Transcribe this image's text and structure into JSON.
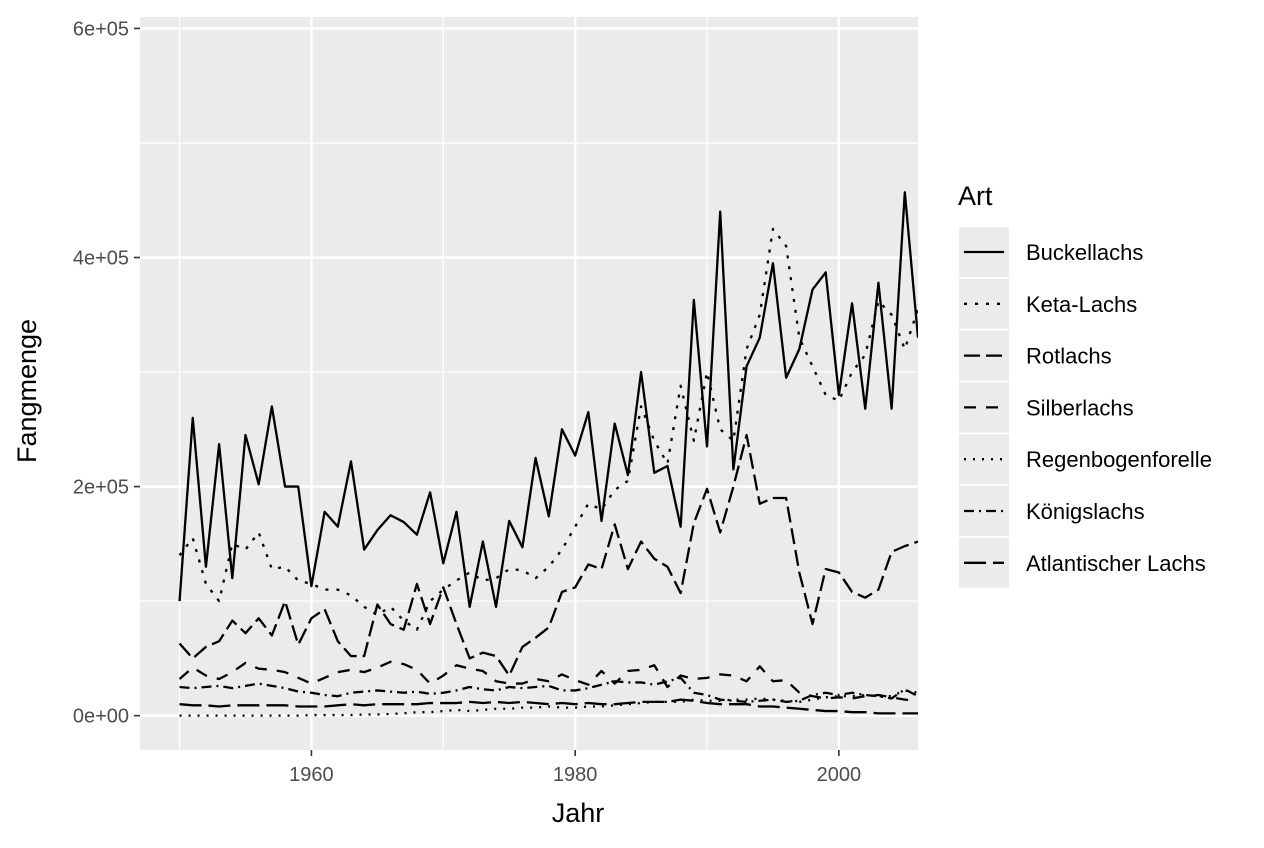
{
  "chart_data": {
    "type": "line",
    "xlabel": "Jahr",
    "ylabel": "Fangmenge",
    "xlim": [
      1947,
      2006
    ],
    "ylim": [
      -30000,
      610000
    ],
    "x_ticks": [
      1960,
      1980,
      2000
    ],
    "x_tick_labels": [
      "1960",
      "1980",
      "2000"
    ],
    "y_ticks": [
      0,
      200000,
      400000,
      600000
    ],
    "y_tick_labels": [
      "0e+00",
      "2e+05",
      "4e+05",
      "6e+05"
    ],
    "grid": true,
    "legend": {
      "title": "Art",
      "position": "right"
    },
    "x": [
      1950,
      1951,
      1952,
      1953,
      1954,
      1955,
      1956,
      1957,
      1958,
      1959,
      1960,
      1961,
      1962,
      1963,
      1964,
      1965,
      1966,
      1967,
      1968,
      1969,
      1970,
      1971,
      1972,
      1973,
      1974,
      1975,
      1976,
      1977,
      1978,
      1979,
      1980,
      1981,
      1982,
      1983,
      1984,
      1985,
      1986,
      1987,
      1988,
      1989,
      1990,
      1991,
      1992,
      1993,
      1994,
      1995,
      1996,
      1997,
      1998,
      1999,
      2000,
      2001,
      2002,
      2003,
      2004,
      2005,
      2006
    ],
    "series": [
      {
        "name": "Buckellachs",
        "dash": "",
        "values": [
          100000,
          260000,
          130000,
          237000,
          120000,
          245000,
          202000,
          270000,
          200000,
          200000,
          113000,
          178000,
          165000,
          222000,
          145000,
          162000,
          175000,
          169000,
          158000,
          195000,
          133000,
          178000,
          95000,
          152000,
          95000,
          170000,
          147000,
          225000,
          174000,
          250000,
          227000,
          265000,
          170000,
          255000,
          210000,
          300000,
          212000,
          218000,
          165000,
          363000,
          235000,
          440000,
          215000,
          305000,
          330000,
          395000,
          295000,
          320000,
          372000,
          387000,
          280000,
          360000,
          268000,
          378000,
          268000,
          457000,
          330000
        ]
      },
      {
        "name": "Keta-Lachs",
        "dash": "3,8",
        "values": [
          140000,
          155000,
          115000,
          100000,
          150000,
          145000,
          160000,
          128000,
          130000,
          118000,
          115000,
          110000,
          110000,
          105000,
          95000,
          88000,
          95000,
          83000,
          75000,
          100000,
          110000,
          118000,
          125000,
          118000,
          120000,
          128000,
          127000,
          120000,
          130000,
          145000,
          165000,
          185000,
          180000,
          197000,
          205000,
          270000,
          240000,
          220000,
          288000,
          240000,
          300000,
          250000,
          240000,
          320000,
          350000,
          425000,
          410000,
          330000,
          305000,
          280000,
          275000,
          300000,
          315000,
          362000,
          350000,
          320000,
          355000
        ]
      },
      {
        "name": "Rotlachs",
        "dash": "16,6",
        "values": [
          63000,
          50000,
          60000,
          65000,
          83000,
          72000,
          85000,
          70000,
          100000,
          62000,
          85000,
          93000,
          65000,
          52000,
          52000,
          97000,
          80000,
          75000,
          115000,
          80000,
          112000,
          80000,
          50000,
          55000,
          52000,
          35000,
          60000,
          68000,
          77000,
          108000,
          112000,
          132000,
          128000,
          167000,
          128000,
          152000,
          137000,
          130000,
          107000,
          168000,
          198000,
          160000,
          200000,
          245000,
          185000,
          190000,
          190000,
          125000,
          80000,
          128000,
          125000,
          108000,
          103000,
          110000,
          143000,
          148000,
          152000
        ]
      },
      {
        "name": "Silberlachs",
        "dash": "12,10",
        "values": [
          32000,
          42000,
          35000,
          32000,
          38000,
          46000,
          41000,
          40000,
          38000,
          33000,
          28000,
          33000,
          38000,
          40000,
          38000,
          42000,
          47000,
          45000,
          40000,
          28000,
          35000,
          44000,
          41000,
          39000,
          30000,
          28000,
          28000,
          32000,
          30000,
          36000,
          31000,
          27000,
          39000,
          28000,
          39000,
          40000,
          44000,
          25000,
          35000,
          32000,
          33000,
          36000,
          35000,
          30000,
          43000,
          30000,
          31000,
          20000,
          17000,
          15000,
          16000,
          15000,
          17000,
          18000,
          16000,
          14000,
          13000
        ]
      },
      {
        "name": "Regenbogenforelle",
        "dash": "2,7",
        "values": [
          0,
          0,
          0,
          0,
          0,
          0,
          0,
          0,
          0,
          0,
          500,
          500,
          500,
          500,
          1000,
          1000,
          1500,
          2000,
          3000,
          3000,
          4000,
          5000,
          4000,
          5000,
          6000,
          6000,
          7000,
          7000,
          8000,
          7000,
          7000,
          8000,
          8000,
          9000,
          10000,
          11000,
          12000,
          12000,
          12000,
          14000,
          13000,
          13000,
          14000,
          14000,
          15000,
          14000,
          13000,
          12000,
          14000,
          16000,
          17000,
          17000,
          18000,
          17000,
          17000,
          22000,
          20000
        ]
      },
      {
        "name": "Königslachs",
        "dash": "10,5,2,5",
        "values": [
          25000,
          24000,
          25000,
          26000,
          24000,
          26000,
          28000,
          26000,
          24000,
          21000,
          20000,
          18000,
          17000,
          20000,
          21000,
          22000,
          21000,
          20000,
          21000,
          19000,
          20000,
          22000,
          25000,
          23000,
          22000,
          25000,
          24000,
          25000,
          26000,
          22000,
          22000,
          24000,
          27000,
          30000,
          29000,
          29000,
          27000,
          30000,
          33000,
          20000,
          18000,
          14000,
          13000,
          12000,
          13000,
          14000,
          12000,
          13000,
          18000,
          20000,
          18000,
          20000,
          18000,
          17000,
          15000,
          23000,
          17000
        ]
      },
      {
        "name": "Atlantischer Lachs",
        "dash": "22,7",
        "values": [
          10000,
          9000,
          9000,
          8000,
          9000,
          9000,
          9000,
          9000,
          9000,
          8000,
          8000,
          8000,
          9000,
          10000,
          9000,
          10000,
          10000,
          10000,
          10000,
          11000,
          11000,
          11000,
          12000,
          11000,
          12000,
          11000,
          12000,
          11000,
          10000,
          11000,
          10000,
          11000,
          10000,
          10000,
          11000,
          12000,
          12000,
          12000,
          14000,
          13000,
          11000,
          10000,
          10000,
          10000,
          8000,
          8000,
          7000,
          6000,
          5000,
          4000,
          4000,
          3000,
          3000,
          2000,
          2000,
          2000,
          2000
        ]
      }
    ]
  }
}
